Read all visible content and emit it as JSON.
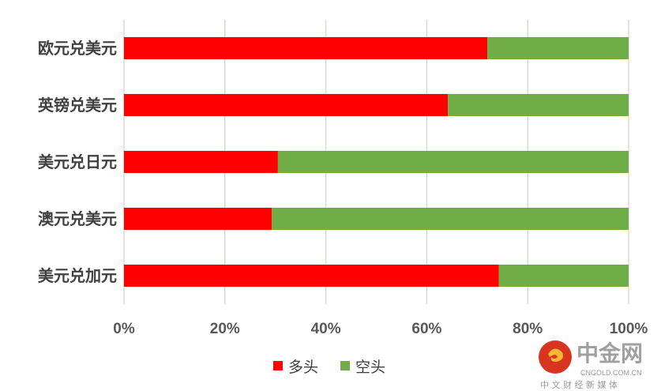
{
  "chart_data": {
    "type": "bar",
    "orientation": "horizontal",
    "stacked": "percent",
    "categories": [
      "欧元兑美元",
      "英镑兑美元",
      "美元兑日元",
      "澳元兑美元",
      "美元兑加元"
    ],
    "series": [
      {
        "name": "多头",
        "color": "#ff0000",
        "values": [
          72.0,
          64.2,
          30.5,
          29.3,
          74.3
        ]
      },
      {
        "name": "空头",
        "color": "#70ad47",
        "values": [
          28.0,
          35.8,
          69.5,
          70.7,
          25.7
        ]
      }
    ],
    "xticks": [
      "0%",
      "20%",
      "40%",
      "60%",
      "80%",
      "100%"
    ],
    "xlim": [
      0,
      100
    ],
    "grid": "vertical",
    "legend": "bottom"
  },
  "watermark": {
    "name": "中金网",
    "domain": "CNGOLD.COM.CN",
    "tagline": "中 文 财 经 新 媒 体"
  }
}
